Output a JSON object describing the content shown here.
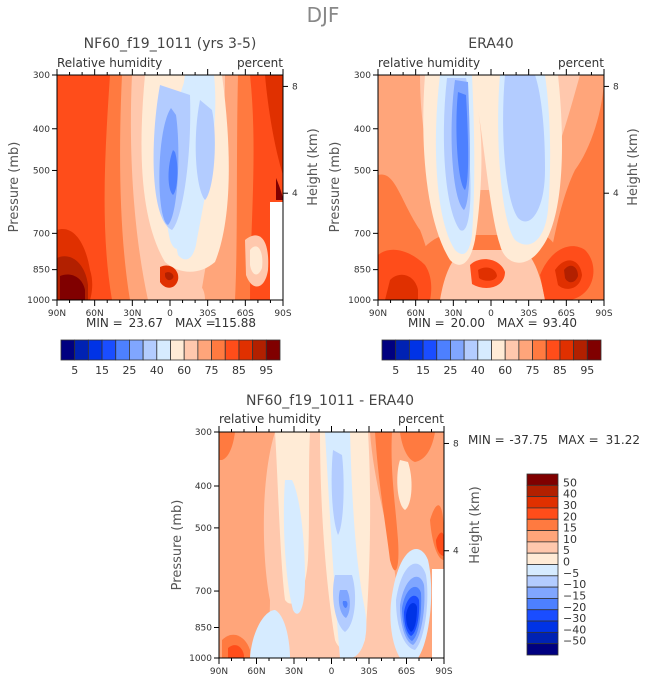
{
  "figure_title": "DJF",
  "chart_data": [
    {
      "type": "heatmap",
      "id": "model",
      "title": "NF60_f19_1011 (yrs 3-5)",
      "left_label": "Relative humidity",
      "right_label": "percent",
      "xlabel": "",
      "ylabel": "Pressure (mb)",
      "y2label": "Height (km)",
      "x_ticks": [
        "90N",
        "60N",
        "30N",
        "0",
        "30S",
        "60S",
        "90S"
      ],
      "y_ticks": [
        "300",
        "400",
        "500",
        "700",
        "850",
        "1000"
      ],
      "y2_ticks": [
        "8",
        "4"
      ],
      "min_label": "MIN =",
      "min_value": "23.67",
      "max_label": "MAX =",
      "max_value": "115.88",
      "colorbar": {
        "orientation": "horizontal",
        "labels": [
          "5",
          "15",
          "25",
          "40",
          "60",
          "75",
          "85",
          "95"
        ],
        "levels": [
          5,
          10,
          15,
          20,
          25,
          30,
          40,
          50,
          60,
          70,
          75,
          80,
          85,
          90,
          95
        ]
      },
      "fields": [
        {
          "level": "80",
          "color": "#ff4d1a",
          "shape": "background"
        },
        {
          "level": "70",
          "color": "#ff7a40",
          "region": "30N-60S, 300-1000"
        },
        {
          "level": "60",
          "color": "#ffa57a",
          "region": "40N-50S, 300-1000"
        },
        {
          "level": "50",
          "color": "#ffc8ad",
          "region": "35N-40S, 300-1000"
        },
        {
          "level": "40",
          "color": "#ffebd6",
          "region": "30N-35S, 300-900"
        },
        {
          "level": "30",
          "color": "#d6ebff",
          "region": "25N-30S, 300-850"
        },
        {
          "level": "25",
          "color": "#b3ccff",
          "region": "20N-5N and 15S-30S, 350-780"
        },
        {
          "level": "20",
          "color": "#80a6ff",
          "region": "25N-10N, 380-730"
        },
        {
          "level": "15",
          "color": "#4d80ff",
          "region": "22N-15N, 530-650"
        },
        {
          "level": "90",
          "color": "#e03000",
          "region": "90N-55N, 800-1000"
        },
        {
          "level": "95",
          "color": "#b22000",
          "region": "90N-65N, 880-1000"
        },
        {
          "level": "100",
          "color": "#800000",
          "region": "85N-70N, 930-1000"
        }
      ]
    },
    {
      "type": "heatmap",
      "id": "obs",
      "title": "ERA40",
      "left_label": "relative humidity",
      "right_label": "percent",
      "xlabel": "",
      "ylabel": "Pressure (mb)",
      "y2label": "Height (km)",
      "x_ticks": [
        "90N",
        "60N",
        "30N",
        "0",
        "30S",
        "60S",
        "90S"
      ],
      "y_ticks": [
        "300",
        "400",
        "500",
        "700",
        "850",
        "1000"
      ],
      "y2_ticks": [
        "8",
        "4"
      ],
      "min_label": "MIN =",
      "min_value": "20.00",
      "max_label": "MAX =",
      "max_value": "93.40",
      "colorbar": {
        "orientation": "horizontal",
        "labels": [
          "5",
          "15",
          "25",
          "40",
          "60",
          "75",
          "85",
          "95"
        ],
        "levels": [
          5,
          10,
          15,
          20,
          25,
          30,
          40,
          50,
          60,
          70,
          75,
          80,
          85,
          90,
          95
        ]
      }
    },
    {
      "type": "heatmap",
      "id": "diff",
      "title": "NF60_f19_1011 - ERA40",
      "left_label": "relative humidity",
      "right_label": "percent",
      "xlabel": "",
      "ylabel": "Pressure (mb)",
      "y2label": "Height (km)",
      "x_ticks": [
        "90N",
        "60N",
        "30N",
        "0",
        "30S",
        "60S",
        "90S"
      ],
      "y_ticks": [
        "300",
        "400",
        "500",
        "700",
        "850",
        "1000"
      ],
      "y2_ticks": [
        "8",
        "4"
      ],
      "min_label": "MIN =",
      "min_value": "-37.75",
      "max_label": "MAX =",
      "max_value": "31.22",
      "colorbar": {
        "orientation": "vertical",
        "labels": [
          "50",
          "40",
          "30",
          "20",
          "15",
          "10",
          "5",
          "0",
          "-5",
          "-10",
          "-15",
          "-20",
          "-30",
          "-40",
          "-50"
        ]
      }
    }
  ],
  "palette": {
    "rh": [
      "#000080",
      "#0022b3",
      "#0033e6",
      "#1a4dff",
      "#4d80ff",
      "#80a6ff",
      "#b3ccff",
      "#d6ebff",
      "#ffebd6",
      "#ffc8ad",
      "#ffa57a",
      "#ff7a40",
      "#ff4d1a",
      "#e03000",
      "#b22000",
      "#800000"
    ],
    "diff": [
      "#800000",
      "#b22000",
      "#e03000",
      "#ff4d1a",
      "#ff7a40",
      "#ffa57a",
      "#ffc8ad",
      "#ffebd6",
      "#d6ebff",
      "#b3ccff",
      "#80a6ff",
      "#4d80ff",
      "#1a4dff",
      "#0033e6",
      "#0022b3",
      "#000080"
    ]
  }
}
